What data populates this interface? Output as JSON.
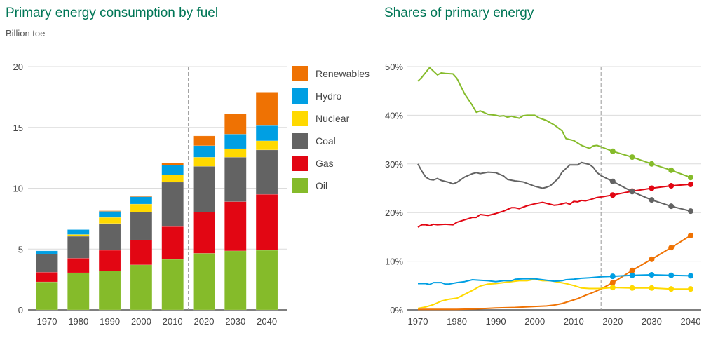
{
  "chart_data": [
    {
      "type": "bar",
      "stacked": true,
      "title": "Primary energy consumption by fuel",
      "subtitle": "Billion toe",
      "xlabel": "",
      "ylabel": "Billion toe",
      "ylim": [
        0,
        20
      ],
      "yticks": [
        "0",
        "5",
        "10",
        "15",
        "20"
      ],
      "grid": true,
      "legend_position": "right",
      "projection_divider_after": "2010",
      "categories": [
        "1970",
        "1980",
        "1990",
        "2000",
        "2010",
        "2020",
        "2030",
        "2040"
      ],
      "series": [
        {
          "name": "Oil",
          "color": "#85bb2a",
          "values": [
            2.3,
            3.05,
            3.2,
            3.7,
            4.15,
            4.65,
            4.85,
            4.9
          ]
        },
        {
          "name": "Gas",
          "color": "#e20613",
          "values": [
            0.8,
            1.2,
            1.7,
            2.05,
            2.7,
            3.4,
            4.05,
            4.6
          ]
        },
        {
          "name": "Coal",
          "color": "#636363",
          "values": [
            1.5,
            1.8,
            2.2,
            2.3,
            3.65,
            3.75,
            3.65,
            3.65
          ]
        },
        {
          "name": "Nuclear",
          "color": "#ffd900",
          "values": [
            0.0,
            0.15,
            0.5,
            0.65,
            0.6,
            0.75,
            0.7,
            0.75
          ]
        },
        {
          "name": "Hydro",
          "color": "#009fe3",
          "values": [
            0.25,
            0.4,
            0.5,
            0.6,
            0.8,
            0.95,
            1.2,
            1.25
          ]
        },
        {
          "name": "Renewables",
          "color": "#ef7203",
          "values": [
            0.0,
            0.0,
            0.05,
            0.05,
            0.2,
            0.8,
            1.65,
            2.75
          ]
        }
      ],
      "legend": [
        "Renewables",
        "Hydro",
        "Nuclear",
        "Coal",
        "Gas",
        "Oil"
      ]
    },
    {
      "type": "line",
      "title": "Shares of primary energy",
      "xlabel": "",
      "ylabel": "",
      "xlim": [
        1970,
        2040
      ],
      "ylim": [
        0,
        50
      ],
      "xticks": [
        "1970",
        "1980",
        "1990",
        "2000",
        "2010",
        "2020",
        "2030",
        "2040"
      ],
      "yticks": [
        "0%",
        "10%",
        "20%",
        "30%",
        "40%",
        "50%"
      ],
      "grid": true,
      "projection_divider_year": 2017,
      "series": [
        {
          "name": "Oil",
          "color": "#85bb2a",
          "x": [
            1970,
            1971,
            1973,
            1975,
            1976,
            1977,
            1979,
            1980,
            1982,
            1984,
            1985,
            1986,
            1988,
            1990,
            1991,
            1992,
            1993,
            1994,
            1996,
            1997,
            1998,
            2000,
            2001,
            2003,
            2005,
            2007,
            2008,
            2010,
            2012,
            2014,
            2015,
            2016,
            2017
          ],
          "y": [
            47.0,
            47.8,
            49.8,
            48.3,
            48.7,
            48.6,
            48.5,
            47.6,
            44.4,
            42.0,
            40.6,
            40.9,
            40.2,
            40.0,
            39.8,
            39.9,
            39.6,
            39.8,
            39.4,
            39.9,
            40.0,
            40.0,
            39.5,
            38.9,
            38.0,
            36.8,
            35.2,
            34.8,
            33.8,
            33.2,
            33.7,
            33.8,
            33.5
          ]
        },
        {
          "name": "Oil projection",
          "color": "#85bb2a",
          "markers": true,
          "x": [
            2017,
            2020,
            2025,
            2030,
            2035,
            2040
          ],
          "y": [
            33.5,
            32.6,
            31.4,
            30.0,
            28.7,
            27.2
          ]
        },
        {
          "name": "Coal",
          "color": "#636363",
          "x": [
            1970,
            1971,
            1972,
            1973,
            1974,
            1975,
            1976,
            1978,
            1979,
            1980,
            1982,
            1984,
            1985,
            1986,
            1988,
            1990,
            1992,
            1993,
            1995,
            1997,
            1998,
            2000,
            2002,
            2003,
            2004,
            2006,
            2007,
            2009,
            2010,
            2011,
            2012,
            2013,
            2014,
            2015,
            2016,
            2017
          ],
          "y": [
            30.0,
            28.5,
            27.3,
            26.8,
            26.7,
            27.0,
            26.6,
            26.2,
            25.9,
            26.2,
            27.3,
            28.0,
            28.2,
            28.0,
            28.3,
            28.2,
            27.5,
            26.8,
            26.5,
            26.3,
            26.0,
            25.4,
            25.0,
            25.2,
            25.5,
            27.0,
            28.3,
            29.8,
            29.8,
            29.8,
            30.3,
            30.1,
            29.9,
            29.3,
            28.2,
            27.6
          ]
        },
        {
          "name": "Coal projection",
          "color": "#636363",
          "markers": true,
          "x": [
            2017,
            2020,
            2025,
            2030,
            2035,
            2040
          ],
          "y": [
            27.6,
            26.4,
            24.3,
            22.6,
            21.3,
            20.3
          ]
        },
        {
          "name": "Gas",
          "color": "#e20613",
          "x": [
            1970,
            1971,
            1972,
            1973,
            1974,
            1975,
            1977,
            1979,
            1980,
            1982,
            1984,
            1985,
            1986,
            1988,
            1990,
            1992,
            1994,
            1995,
            1996,
            1998,
            2000,
            2002,
            2004,
            2005,
            2006,
            2008,
            2009,
            2010,
            2011,
            2012,
            2013,
            2014,
            2016,
            2017
          ],
          "y": [
            17.0,
            17.5,
            17.5,
            17.3,
            17.6,
            17.5,
            17.6,
            17.5,
            18.0,
            18.5,
            19.0,
            19.0,
            19.6,
            19.4,
            19.8,
            20.3,
            21.0,
            21.0,
            20.8,
            21.4,
            21.8,
            22.1,
            21.7,
            21.5,
            21.6,
            22.0,
            21.7,
            22.3,
            22.2,
            22.5,
            22.4,
            22.6,
            23.1,
            23.2
          ]
        },
        {
          "name": "Gas projection",
          "color": "#e20613",
          "markers": true,
          "x": [
            2017,
            2020,
            2025,
            2030,
            2035,
            2040
          ],
          "y": [
            23.2,
            23.6,
            24.4,
            25.0,
            25.5,
            25.8
          ]
        },
        {
          "name": "Hydro",
          "color": "#009fe3",
          "x": [
            1970,
            1972,
            1973,
            1974,
            1976,
            1977,
            1978,
            1980,
            1982,
            1984,
            1986,
            1988,
            1990,
            1992,
            1994,
            1995,
            1997,
            2000,
            2002,
            2005,
            2007,
            2008,
            2010,
            2012,
            2014,
            2017
          ],
          "y": [
            5.4,
            5.4,
            5.2,
            5.6,
            5.6,
            5.3,
            5.3,
            5.6,
            5.8,
            6.2,
            6.1,
            6.0,
            5.8,
            6.0,
            6.0,
            6.3,
            6.4,
            6.4,
            6.2,
            5.9,
            6.0,
            6.2,
            6.3,
            6.5,
            6.6,
            6.8
          ]
        },
        {
          "name": "Hydro projection",
          "color": "#009fe3",
          "markers": true,
          "x": [
            2017,
            2020,
            2025,
            2030,
            2035,
            2040
          ],
          "y": [
            6.8,
            6.9,
            7.1,
            7.2,
            7.1,
            7.0
          ]
        },
        {
          "name": "Nuclear",
          "color": "#ffd900",
          "x": [
            1970,
            1972,
            1974,
            1976,
            1978,
            1980,
            1982,
            1984,
            1986,
            1988,
            1990,
            1992,
            1994,
            1996,
            1998,
            2000,
            2002,
            2004,
            2006,
            2008,
            2010,
            2012,
            2014,
            2017
          ],
          "y": [
            0.3,
            0.6,
            1.1,
            1.8,
            2.2,
            2.4,
            3.2,
            4.0,
            4.9,
            5.3,
            5.4,
            5.6,
            5.8,
            6.0,
            6.0,
            6.3,
            6.0,
            6.0,
            5.7,
            5.4,
            5.0,
            4.5,
            4.4,
            4.4
          ]
        },
        {
          "name": "Nuclear projection",
          "color": "#ffd900",
          "markers": true,
          "x": [
            2017,
            2020,
            2025,
            2030,
            2035,
            2040
          ],
          "y": [
            4.4,
            4.6,
            4.5,
            4.5,
            4.3,
            4.3
          ]
        },
        {
          "name": "Renewables",
          "color": "#ef7203",
          "x": [
            1970,
            1975,
            1980,
            1985,
            1990,
            1995,
            2000,
            2003,
            2005,
            2007,
            2009,
            2011,
            2013,
            2015,
            2017
          ],
          "y": [
            0.1,
            0.1,
            0.1,
            0.2,
            0.4,
            0.5,
            0.7,
            0.8,
            1.0,
            1.3,
            1.8,
            2.3,
            3.0,
            3.6,
            4.3
          ]
        },
        {
          "name": "Renewables projection",
          "color": "#ef7203",
          "markers": true,
          "x": [
            2017,
            2020,
            2025,
            2030,
            2035,
            2040
          ],
          "y": [
            4.3,
            5.6,
            8.1,
            10.4,
            12.8,
            15.3
          ]
        }
      ]
    }
  ]
}
